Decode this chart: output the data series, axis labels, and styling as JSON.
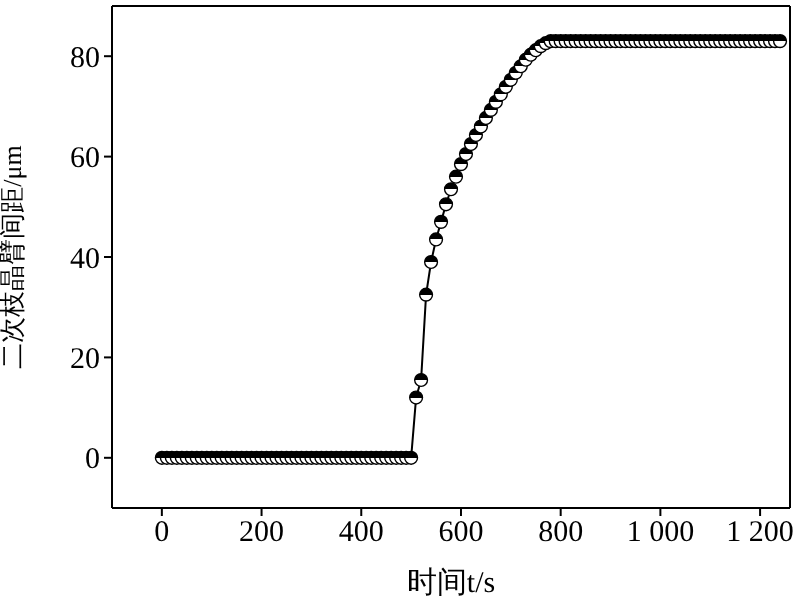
{
  "chart_data": {
    "type": "line",
    "xlabel": "时间t/s",
    "ylabel": "二次枝晶臂间距/μm",
    "x": [
      0,
      10,
      20,
      30,
      40,
      50,
      60,
      70,
      80,
      90,
      100,
      110,
      120,
      130,
      140,
      150,
      160,
      170,
      180,
      190,
      200,
      210,
      220,
      230,
      240,
      250,
      260,
      270,
      280,
      290,
      300,
      310,
      320,
      330,
      340,
      350,
      360,
      370,
      380,
      390,
      400,
      410,
      420,
      430,
      440,
      450,
      460,
      470,
      480,
      490,
      500,
      510,
      520,
      530,
      540,
      550,
      560,
      570,
      580,
      590,
      600,
      610,
      620,
      630,
      640,
      650,
      660,
      670,
      680,
      690,
      700,
      710,
      720,
      730,
      740,
      750,
      760,
      770,
      780,
      790,
      800,
      810,
      820,
      830,
      840,
      850,
      860,
      870,
      880,
      890,
      900,
      910,
      920,
      930,
      940,
      950,
      960,
      970,
      980,
      990,
      1000,
      1010,
      1020,
      1030,
      1040,
      1050,
      1060,
      1070,
      1080,
      1090,
      1100,
      1110,
      1120,
      1130,
      1140,
      1150,
      1160,
      1170,
      1180,
      1190,
      1200,
      1210,
      1220,
      1230,
      1240
    ],
    "series": [
      {
        "color": "#000000",
        "values": [
          0,
          0,
          0,
          0,
          0,
          0,
          0,
          0,
          0,
          0,
          0,
          0,
          0,
          0,
          0,
          0,
          0,
          0,
          0,
          0,
          0,
          0,
          0,
          0,
          0,
          0,
          0,
          0,
          0,
          0,
          0,
          0,
          0,
          0,
          0,
          0,
          0,
          0,
          0,
          0,
          0,
          0,
          0,
          0,
          0,
          0,
          0,
          0,
          0,
          0,
          0,
          12,
          15.5,
          32.5,
          39,
          43.5,
          47,
          50.5,
          53.5,
          56,
          58.5,
          60.5,
          62.5,
          64.3,
          66,
          67.7,
          69.3,
          70.9,
          72.4,
          73.9,
          75.3,
          76.7,
          78,
          79.3,
          80.3,
          81.2,
          82,
          82.6,
          83,
          83,
          83,
          83,
          83,
          83,
          83,
          83,
          83,
          83,
          83,
          83,
          83,
          83,
          83,
          83,
          83,
          83,
          83,
          83,
          83,
          83,
          83,
          83,
          83,
          83,
          83,
          83,
          83,
          83,
          83,
          83,
          83,
          83,
          83,
          83,
          83,
          83,
          83,
          83,
          83,
          83,
          83,
          83,
          83,
          83,
          83
        ]
      }
    ],
    "xlim": [
      -100,
      1260
    ],
    "ylim": [
      -10,
      90
    ],
    "xticks": [
      0,
      200,
      400,
      600,
      800,
      {
        "value": 1000,
        "label": "1 000"
      },
      {
        "value": 1200,
        "label": "1 200"
      }
    ],
    "yticks": [
      0,
      20,
      40,
      60,
      80
    ],
    "grid": false,
    "legend": false,
    "marker": "circle",
    "line_style": "solid"
  }
}
